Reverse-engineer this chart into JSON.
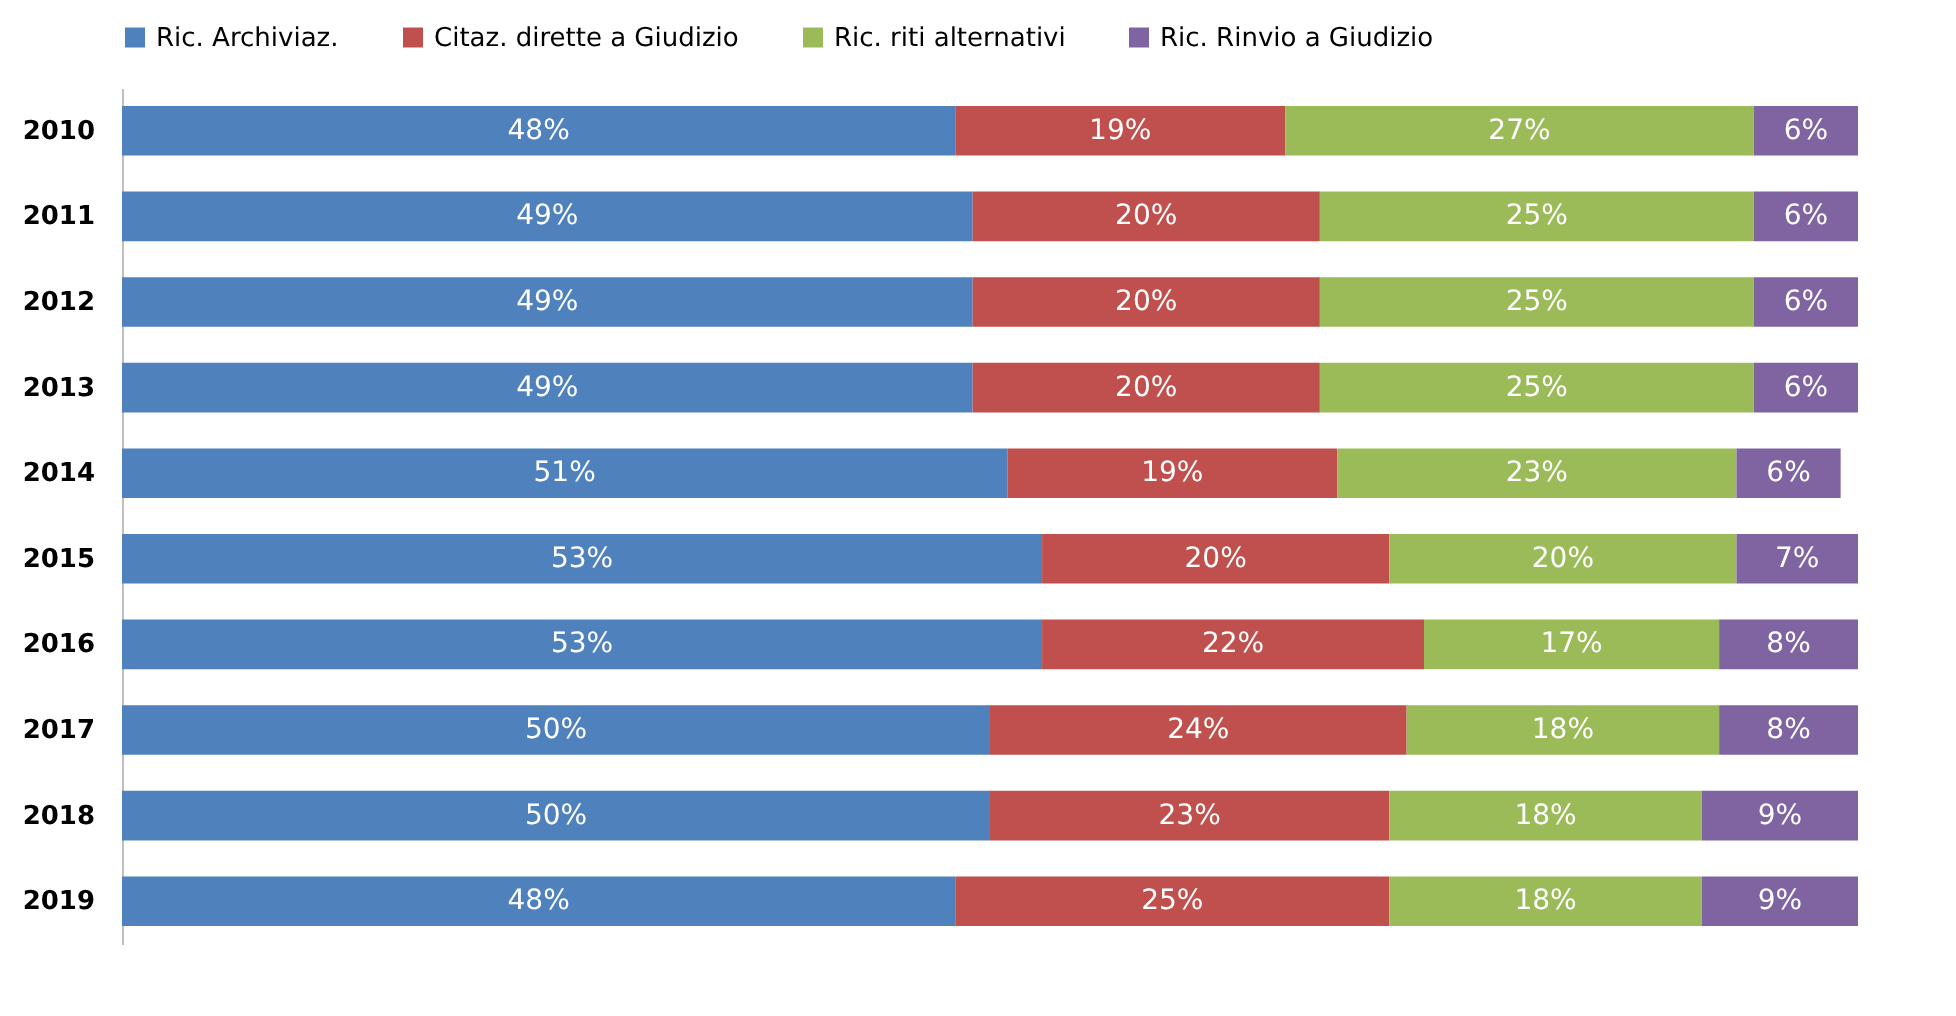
{
  "chart_data": {
    "type": "bar",
    "orientation": "horizontal",
    "stacked": true,
    "legend": "top",
    "categories": [
      "2010",
      "2011",
      "2012",
      "2013",
      "2014",
      "2015",
      "2016",
      "2017",
      "2018",
      "2019"
    ],
    "series": [
      {
        "name": "Ric. Archiviaz.",
        "color": "#4f81bd",
        "values": [
          48,
          49,
          49,
          49,
          51,
          53,
          53,
          50,
          50,
          48
        ],
        "value_labels": [
          "48%",
          "49%",
          "49%",
          "49%",
          "51%",
          "53%",
          "53%",
          "50%",
          "50%",
          "48%"
        ]
      },
      {
        "name": "Citaz. dirette a Giudizio",
        "color": "#c0504d",
        "values": [
          19,
          20,
          20,
          20,
          19,
          20,
          22,
          24,
          23,
          25
        ],
        "value_labels": [
          "19%",
          "20%",
          "20%",
          "20%",
          "19%",
          "20%",
          "22%",
          "24%",
          "23%",
          "25%"
        ]
      },
      {
        "name": "Ric. riti alternativi",
        "color": "#9bbb59",
        "values": [
          27,
          25,
          25,
          25,
          23,
          20,
          17,
          18,
          18,
          18
        ],
        "value_labels": [
          "27%",
          "25%",
          "25%",
          "25%",
          "23%",
          "20%",
          "17%",
          "18%",
          "18%",
          "18%"
        ]
      },
      {
        "name": "Ric. Rinvio a Giudizio",
        "color": "#8064a2",
        "values": [
          6,
          6,
          6,
          6,
          6,
          7,
          8,
          8,
          9,
          9
        ],
        "value_labels": [
          "6%",
          "6%",
          "6%",
          "6%",
          "6%",
          "7%",
          "8%",
          "8%",
          "9%",
          "9%"
        ]
      }
    ]
  }
}
